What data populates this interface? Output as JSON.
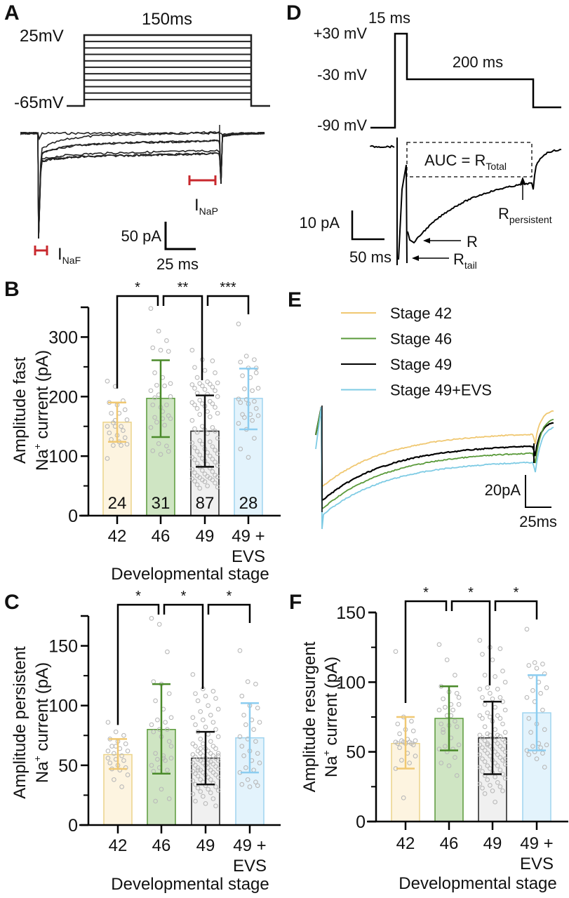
{
  "panels": {
    "A": {
      "label": "A",
      "duration": "150ms",
      "v_high": "25mV",
      "v_low": "-65mV",
      "step_count": 11,
      "inaf_label": "I",
      "inaf_sub": "NaF",
      "inap_label": "I",
      "inap_sub": "NaP",
      "scale_y": "50 pA",
      "scale_x": "25 ms",
      "marker_color": "#c8282d"
    },
    "D": {
      "label": "D",
      "pulse_duration": "15 ms",
      "step_duration": "200 ms",
      "v_pulse": "+30 mV",
      "v_step": "-30 mV",
      "v_hold": "-90 mV",
      "auc_label": "AUC = R",
      "auc_sub": "Total",
      "r_label": "R",
      "rtail_label": "R",
      "rtail_sub": "tail",
      "rpers_label": "R",
      "rpers_sub": "persistent",
      "scale_y": "10 pA",
      "scale_x": "50 ms"
    },
    "E": {
      "label": "E",
      "legend": [
        {
          "name": "Stage 42",
          "color": "#f0c872"
        },
        {
          "name": "Stage 46",
          "color": "#5a9a3a"
        },
        {
          "name": "Stage 49",
          "color": "#000000"
        },
        {
          "name": "Stage 49+EVS",
          "color": "#7ecbe4"
        }
      ],
      "scale_y": "20pA",
      "scale_x": "25ms"
    }
  },
  "chart_data": [
    {
      "id": "B",
      "panel_label": "B",
      "type": "bar",
      "ylabel_line1": "Amplitude fast",
      "ylabel_line2_pre": "Na",
      "ylabel_line2_sup": "+",
      "ylabel_line2_post": " current (pA)",
      "xlabel": "Developmental stage",
      "categories": [
        "42",
        "46",
        "49",
        "49 +\nEVS"
      ],
      "category_lines": [
        [
          "42"
        ],
        [
          "46"
        ],
        [
          "49"
        ],
        [
          "49 +",
          "EVS"
        ]
      ],
      "ylim": [
        0,
        350
      ],
      "yticks": [
        0,
        100,
        200,
        300
      ],
      "yminor": [
        50,
        150,
        250
      ],
      "means": [
        157,
        197,
        142,
        197
      ],
      "sd_upper": [
        190,
        261,
        202,
        247
      ],
      "sd_lower": [
        124,
        132,
        82,
        145
      ],
      "n_labels": [
        "24",
        "31",
        "87",
        "28"
      ],
      "significance": [
        {
          "from": 0,
          "to": 1,
          "label": "*"
        },
        {
          "from": 1,
          "to": 2,
          "label": "**"
        },
        {
          "from": 2,
          "to": 3,
          "label": "***"
        }
      ],
      "points": [
        [
          226,
          217,
          193,
          190,
          186,
          178,
          172,
          172,
          161,
          156,
          150,
          150,
          150,
          143,
          139,
          135,
          131,
          128,
          124,
          120,
          118,
          118,
          96,
          160
        ],
        [
          348,
          310,
          294,
          282,
          278,
          276,
          240,
          232,
          222,
          219,
          218,
          210,
          203,
          186,
          186,
          182,
          168,
          165,
          163,
          163,
          157,
          152,
          148,
          121,
          117,
          109,
          103,
          108,
          198,
          175,
          200
        ],
        [
          278,
          262,
          260,
          249,
          244,
          240,
          232,
          225,
          223,
          222,
          221,
          220,
          218,
          216,
          214,
          212,
          210,
          206,
          204,
          200,
          194,
          192,
          190,
          188,
          188,
          186,
          184,
          182,
          180,
          175,
          172,
          170,
          166,
          160,
          150,
          148,
          146,
          144,
          142,
          140,
          138,
          130,
          126,
          124,
          122,
          120,
          116,
          114,
          112,
          110,
          108,
          106,
          104,
          102,
          100,
          98,
          96,
          95,
          94,
          92,
          90,
          88,
          86,
          84,
          82,
          80,
          78,
          76,
          74,
          72,
          70,
          68,
          67,
          66,
          65,
          64,
          63,
          62,
          60,
          60,
          58,
          57,
          55,
          52,
          50,
          48,
          46
        ],
        [
          322,
          268,
          262,
          258,
          248,
          240,
          235,
          232,
          214,
          213,
          210,
          196,
          195,
          192,
          190,
          188,
          180,
          170,
          170,
          168,
          165,
          160,
          155,
          145,
          130,
          112,
          98,
          248
        ]
      ],
      "colors": {
        "fill": [
          "#fdf4e0",
          "#cfe5c3",
          "#f0f0f0",
          "#e3f3fc"
        ],
        "edge": [
          "#ecd48a",
          "#5a9a3a",
          "#222222",
          "#9fd4ef"
        ],
        "err": [
          "#f0c872",
          "#4a8a2a",
          "#111111",
          "#8ccdf0"
        ]
      }
    },
    {
      "id": "C",
      "panel_label": "C",
      "type": "bar",
      "ylabel_line1": "Amplitude persistent",
      "ylabel_line2_pre": "Na",
      "ylabel_line2_sup": "+",
      "ylabel_line2_post": " current (pA)",
      "xlabel": "Developmental stage",
      "categories": [
        "42",
        "46",
        "49",
        "49 +\nEVS"
      ],
      "category_lines": [
        [
          "42"
        ],
        [
          "46"
        ],
        [
          "49"
        ],
        [
          "49 +",
          "EVS"
        ]
      ],
      "ylim": [
        0,
        175
      ],
      "yticks": [
        0,
        50,
        100,
        150
      ],
      "yminor": [
        25,
        75,
        125
      ],
      "means": [
        59,
        80,
        56,
        73
      ],
      "sd_upper": [
        72,
        118,
        78,
        102
      ],
      "sd_lower": [
        47,
        43,
        34,
        44
      ],
      "n_labels": [],
      "significance": [
        {
          "from": 0,
          "to": 1,
          "label": "*"
        },
        {
          "from": 1,
          "to": 2,
          "label": "*"
        },
        {
          "from": 2,
          "to": 3,
          "label": "*"
        }
      ],
      "points": [
        [
          86,
          78,
          75,
          72,
          70,
          68,
          66,
          64,
          62,
          60,
          58,
          56,
          55,
          54,
          52,
          50,
          48,
          47,
          46,
          42,
          38,
          32,
          62,
          66
        ],
        [
          173,
          168,
          145,
          120,
          118,
          110,
          104,
          97,
          90,
          88,
          86,
          84,
          80,
          80,
          78,
          74,
          70,
          60,
          58,
          56,
          55,
          54,
          50,
          48,
          46,
          45,
          30,
          22,
          20,
          56,
          66
        ],
        [
          126,
          114,
          112,
          110,
          108,
          106,
          104,
          100,
          97,
          95,
          92,
          90,
          88,
          86,
          84,
          82,
          80,
          78,
          76,
          74,
          72,
          70,
          68,
          68,
          66,
          66,
          64,
          64,
          62,
          62,
          60,
          60,
          60,
          59,
          58,
          58,
          57,
          56,
          56,
          55,
          55,
          54,
          54,
          53,
          52,
          52,
          51,
          50,
          50,
          49,
          48,
          48,
          47,
          46,
          46,
          45,
          44,
          44,
          43,
          42,
          42,
          41,
          40,
          40,
          38,
          38,
          37,
          36,
          35,
          34,
          33,
          32,
          31,
          30,
          29,
          28,
          27,
          26,
          24,
          22,
          20,
          18,
          16,
          46,
          52,
          58,
          64
        ],
        [
          146,
          120,
          118,
          108,
          100,
          98,
          92,
          88,
          86,
          84,
          80,
          74,
          72,
          70,
          66,
          62,
          60,
          58,
          54,
          52,
          48,
          46,
          44,
          38,
          36,
          34,
          32,
          33
        ]
      ],
      "colors": {
        "fill": [
          "#fdf4e0",
          "#cfe5c3",
          "#f0f0f0",
          "#e3f3fc"
        ],
        "edge": [
          "#ecd48a",
          "#5a9a3a",
          "#222222",
          "#9fd4ef"
        ],
        "err": [
          "#f0c872",
          "#4a8a2a",
          "#111111",
          "#8ccdf0"
        ]
      }
    },
    {
      "id": "F",
      "panel_label": "F",
      "type": "bar",
      "ylabel_line1": "Amplitude resurgent",
      "ylabel_line2_pre": "Na",
      "ylabel_line2_sup": "+",
      "ylabel_line2_post": " current (pA)",
      "xlabel": "Developmental stage",
      "categories": [
        "42",
        "46",
        "49",
        "49 +\nEVS"
      ],
      "category_lines": [
        [
          "42"
        ],
        [
          "46"
        ],
        [
          "49"
        ],
        [
          "49 +",
          "EVS"
        ]
      ],
      "ylim": [
        0,
        150
      ],
      "yticks": [
        0,
        50,
        100,
        150
      ],
      "yminor": [
        25,
        75,
        125
      ],
      "means": [
        56,
        74,
        60,
        78
      ],
      "sd_upper": [
        75,
        97,
        86,
        105
      ],
      "sd_lower": [
        38,
        51,
        34,
        51
      ],
      "n_labels": [],
      "significance": [
        {
          "from": 0,
          "to": 1,
          "label": "*"
        },
        {
          "from": 1,
          "to": 2,
          "label": "*"
        },
        {
          "from": 2,
          "to": 3,
          "label": "*"
        }
      ],
      "points": [
        [
          122,
          75,
          72,
          70,
          66,
          65,
          63,
          59,
          58,
          58,
          57,
          57,
          57,
          56,
          56,
          56,
          55,
          53,
          49,
          47,
          44,
          42,
          38,
          17
        ],
        [
          127,
          116,
          105,
          97,
          93,
          92,
          88,
          84,
          84,
          82,
          80,
          80,
          76,
          72,
          70,
          69,
          68,
          66,
          60,
          55,
          54,
          52,
          52,
          50,
          46,
          42,
          40,
          33,
          64,
          76,
          89
        ],
        [
          130,
          125,
          124,
          120,
          116,
          108,
          105,
          104,
          100,
          96,
          95,
          95,
          92,
          89,
          89,
          88,
          86,
          84,
          82,
          80,
          78,
          76,
          76,
          75,
          74,
          74,
          72,
          70,
          68,
          66,
          64,
          63,
          62,
          62,
          62,
          61,
          60,
          60,
          59,
          58,
          58,
          57,
          56,
          56,
          55,
          54,
          54,
          53,
          52,
          52,
          51,
          50,
          50,
          49,
          48,
          48,
          47,
          46,
          45,
          44,
          44,
          43,
          42,
          41,
          40,
          40,
          39,
          38,
          37,
          36,
          35,
          34,
          33,
          32,
          31,
          30,
          28,
          27,
          26,
          25,
          24,
          22,
          22,
          20,
          14,
          45,
          55
        ],
        [
          138,
          114,
          113,
          112,
          110,
          106,
          104,
          100,
          96,
          94,
          92,
          89,
          86,
          80,
          74,
          70,
          66,
          64,
          56,
          55,
          54,
          53,
          51,
          50,
          49,
          48,
          45,
          39
        ]
      ],
      "colors": {
        "fill": [
          "#fdf4e0",
          "#cfe5c3",
          "#f0f0f0",
          "#e3f3fc"
        ],
        "edge": [
          "#ecd48a",
          "#5a9a3a",
          "#222222",
          "#9fd4ef"
        ],
        "err": [
          "#f0c872",
          "#4a8a2a",
          "#111111",
          "#8ccdf0"
        ]
      }
    }
  ]
}
